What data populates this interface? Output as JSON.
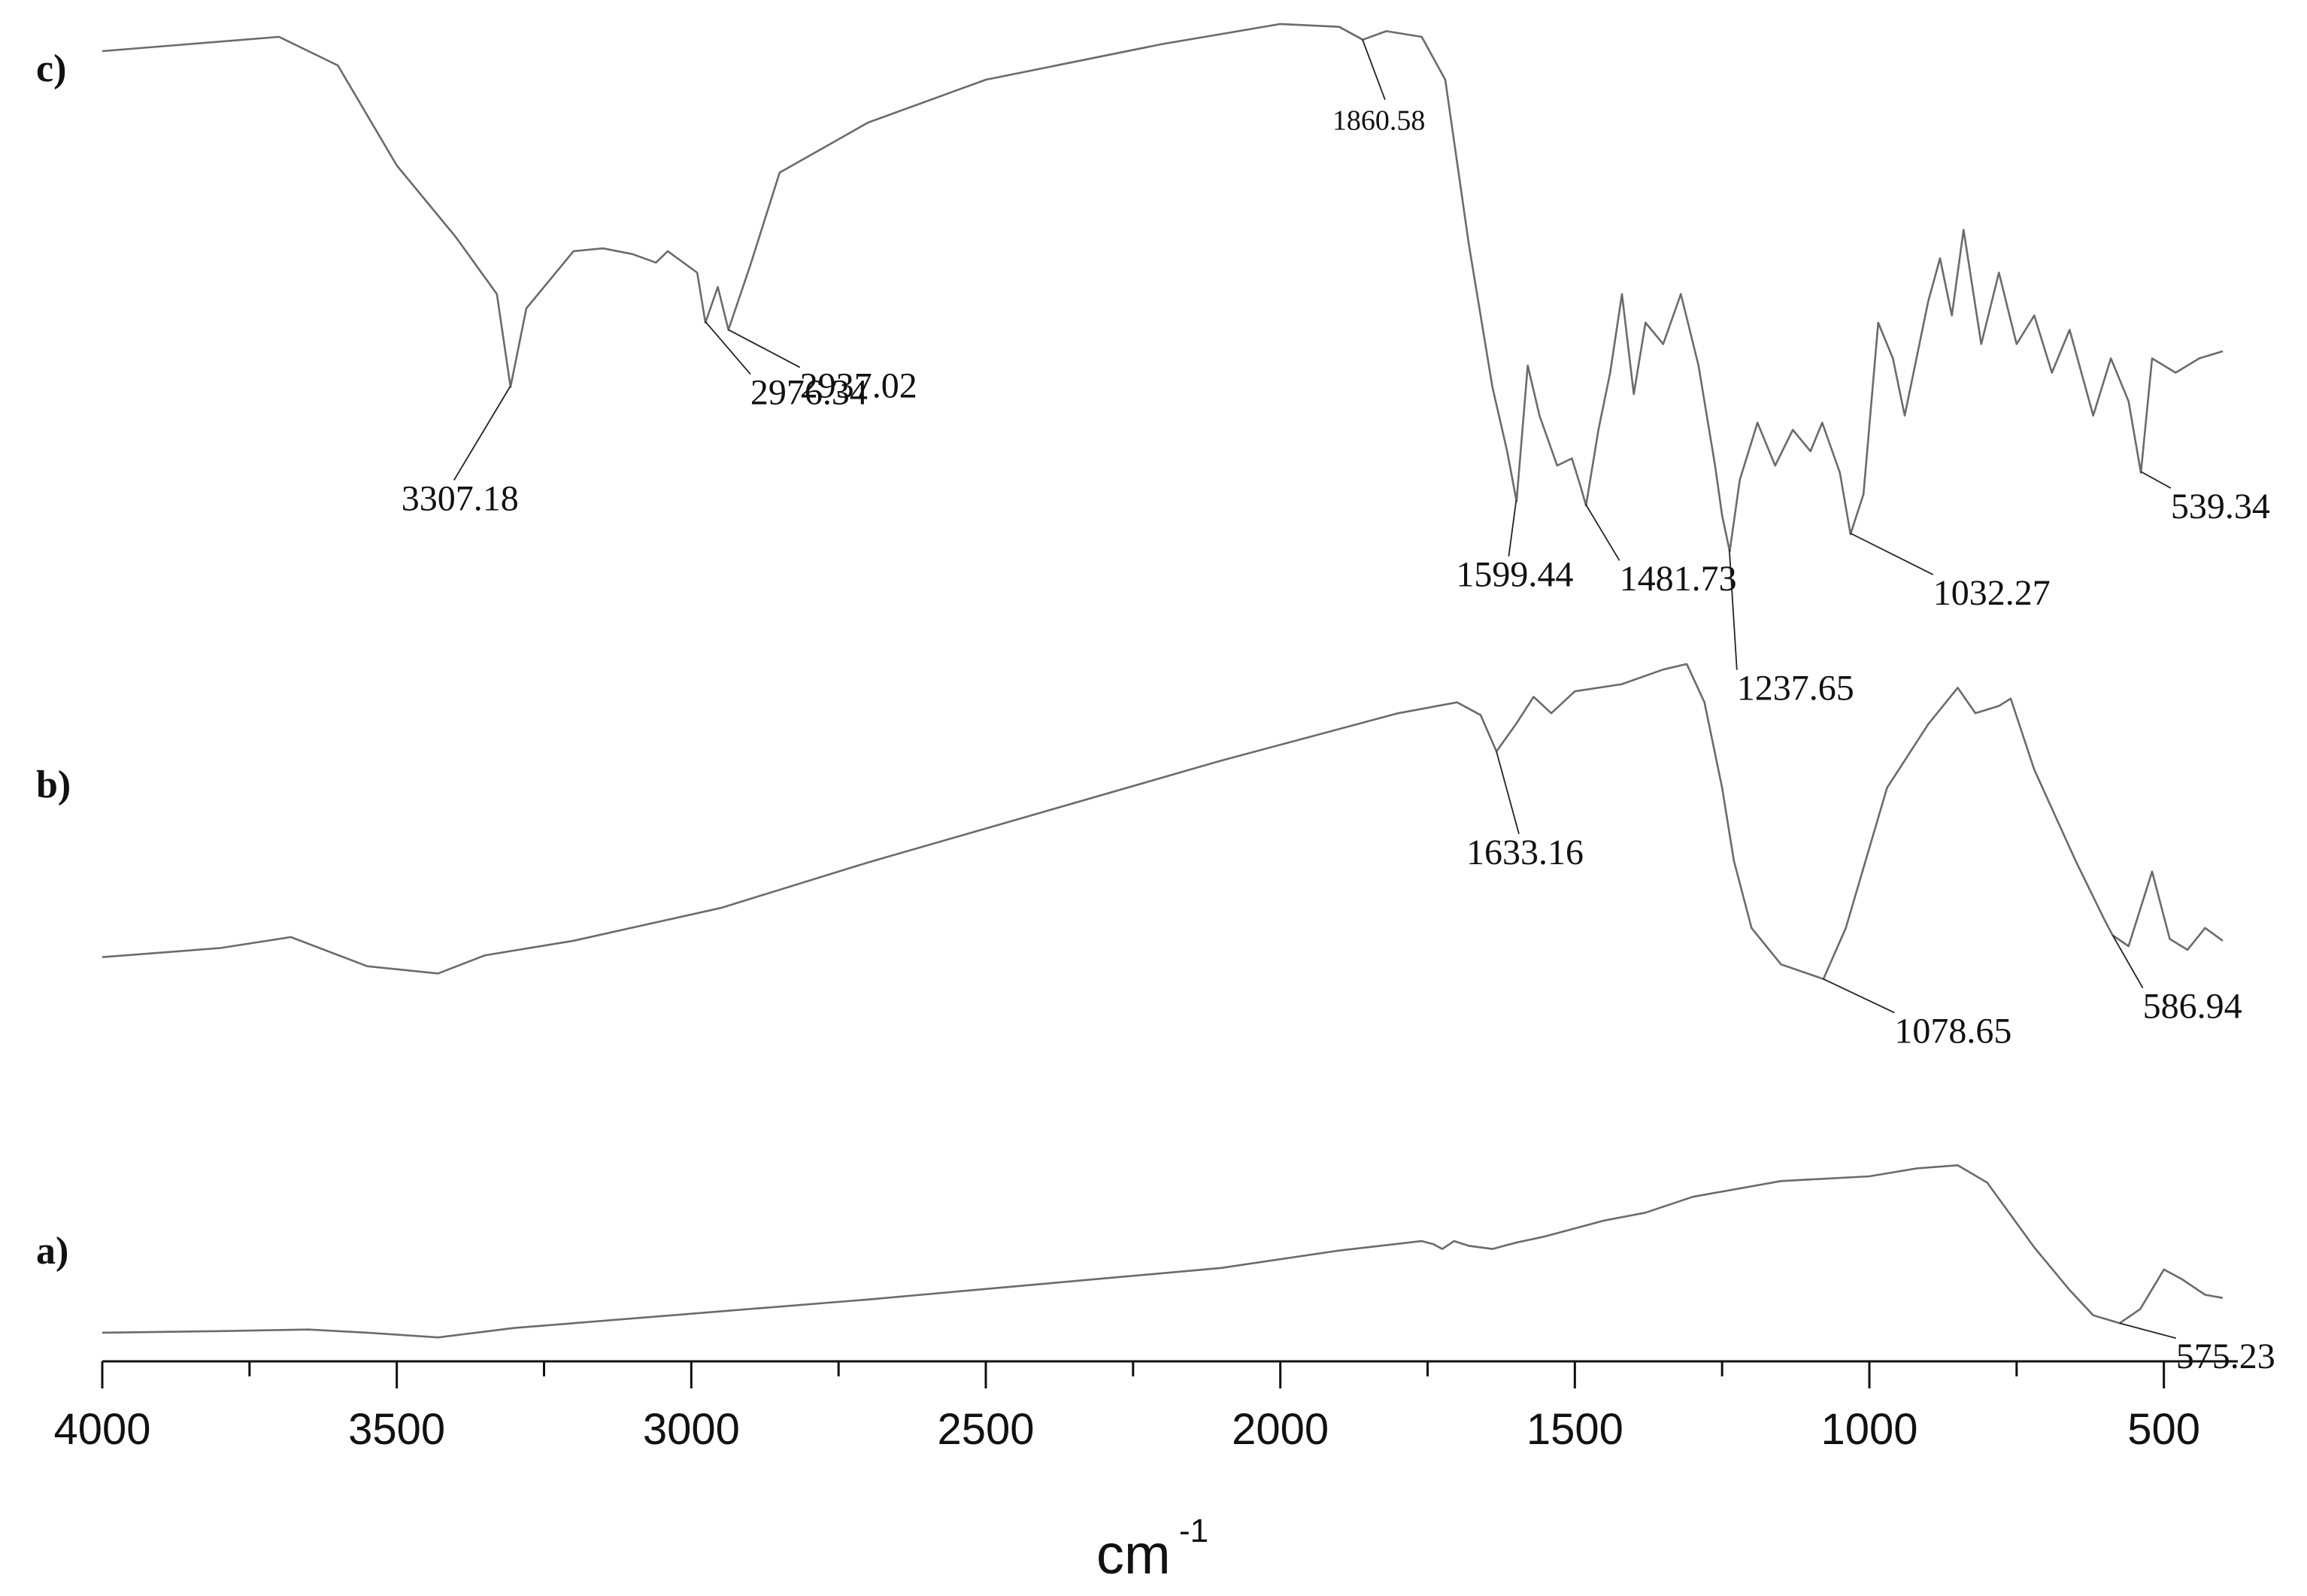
{
  "chart_data": {
    "type": "line",
    "xlabel": "cm",
    "xlabel_superscript": "-1",
    "xlim": [
      4000,
      400
    ],
    "x_ticks": [
      4000,
      3500,
      3000,
      2500,
      2000,
      1500,
      1000,
      500
    ],
    "x_tick_labels": [
      "4000",
      "3500",
      "3000",
      "2500",
      "2000",
      "1500",
      "1000",
      "500"
    ],
    "x_minor_ticks": [
      3750,
      3250,
      2750,
      2250,
      1750,
      1250,
      750
    ],
    "y_axis_shown": false,
    "grid": false,
    "series": [
      {
        "name": "a)",
        "x": [
          4000,
          3800,
          3650,
          3550,
          3430,
          3300,
          3000,
          2700,
          2400,
          2100,
          1900,
          1760,
          1740,
          1725,
          1705,
          1680,
          1640,
          1600,
          1550,
          1450,
          1380,
          1300,
          1150,
          1000,
          920,
          850,
          800,
          720,
          660,
          620,
          575,
          540,
          500,
          470,
          430,
          400
        ],
        "y": [
          0.11,
          0.12,
          0.13,
          0.11,
          0.08,
          0.14,
          0.23,
          0.32,
          0.42,
          0.52,
          0.63,
          0.69,
          0.67,
          0.64,
          0.69,
          0.66,
          0.64,
          0.68,
          0.72,
          0.82,
          0.87,
          0.97,
          1.07,
          1.1,
          1.15,
          1.17,
          1.06,
          0.65,
          0.38,
          0.22,
          0.17,
          0.26,
          0.51,
          0.45,
          0.35,
          0.33
        ],
        "peak_labels": [
          {
            "x": 575.23,
            "label": "575.23"
          }
        ]
      },
      {
        "name": "b)",
        "x": [
          4000,
          3800,
          3680,
          3550,
          3430,
          3350,
          3200,
          2950,
          2700,
          2400,
          2100,
          1800,
          1700,
          1660,
          1633,
          1600,
          1570,
          1540,
          1500,
          1420,
          1350,
          1310,
          1280,
          1250,
          1230,
          1200,
          1150,
          1078,
          1040,
          1000,
          970,
          900,
          850,
          820,
          780,
          760,
          720,
          650,
          600,
          587,
          560,
          520,
          490,
          460,
          430,
          400
        ],
        "y": [
          0.32,
          0.37,
          0.43,
          0.27,
          0.23,
          0.33,
          0.41,
          0.59,
          0.84,
          1.12,
          1.4,
          1.66,
          1.72,
          1.65,
          1.45,
          1.6,
          1.75,
          1.66,
          1.78,
          1.82,
          1.9,
          1.93,
          1.72,
          1.25,
          0.85,
          0.48,
          0.28,
          0.2,
          0.48,
          0.92,
          1.25,
          1.6,
          1.8,
          1.66,
          1.7,
          1.74,
          1.35,
          0.85,
          0.52,
          0.44,
          0.38,
          0.79,
          0.42,
          0.36,
          0.48,
          0.41
        ],
        "peak_labels": [
          {
            "x": 1633.16,
            "label": "1633.16"
          },
          {
            "x": 1078.65,
            "label": "1078.65"
          },
          {
            "x": 586.94,
            "label": "586.94"
          }
        ]
      },
      {
        "name": "c)",
        "x": [
          4000,
          3850,
          3700,
          3600,
          3500,
          3400,
          3330,
          3307,
          3280,
          3200,
          3150,
          3100,
          3060,
          3040,
          2990,
          2976,
          2955,
          2937,
          2900,
          2850,
          2700,
          2500,
          2200,
          2000,
          1900,
          1860,
          1820,
          1760,
          1720,
          1680,
          1640,
          1615,
          1599,
          1580,
          1560,
          1530,
          1505,
          1490,
          1481,
          1460,
          1440,
          1420,
          1400,
          1380,
          1370,
          1350,
          1320,
          1290,
          1262,
          1250,
          1237,
          1220,
          1190,
          1160,
          1130,
          1100,
          1080,
          1050,
          1032,
          1010,
          985,
          960,
          940,
          900,
          880,
          860,
          840,
          810,
          780,
          750,
          720,
          690,
          660,
          620,
          590,
          560,
          539,
          520,
          480,
          440,
          400
        ],
        "y": [
          5.0,
          5.05,
          5.1,
          4.9,
          4.2,
          3.7,
          3.3,
          2.65,
          3.2,
          3.6,
          3.62,
          3.58,
          3.52,
          3.6,
          3.45,
          3.1,
          3.35,
          3.05,
          3.5,
          4.15,
          4.5,
          4.8,
          5.05,
          5.19,
          5.17,
          5.08,
          5.14,
          5.1,
          4.8,
          3.65,
          2.65,
          2.2,
          1.85,
          2.8,
          2.45,
          2.1,
          2.15,
          1.95,
          1.82,
          2.35,
          2.75,
          3.3,
          2.6,
          3.1,
          3.05,
          2.95,
          3.3,
          2.8,
          2.1,
          1.75,
          1.5,
          2.0,
          2.4,
          2.1,
          2.35,
          2.2,
          2.4,
          2.05,
          1.62,
          1.9,
          3.1,
          2.85,
          2.45,
          3.25,
          3.55,
          3.15,
          3.75,
          2.95,
          3.45,
          2.95,
          3.15,
          2.75,
          3.05,
          2.45,
          2.85,
          2.55,
          2.05,
          2.85,
          2.75,
          2.85,
          2.9
        ],
        "peak_labels": [
          {
            "x": 3307.18,
            "label": "3307.18"
          },
          {
            "x": 2976.34,
            "label": "2976.34"
          },
          {
            "x": 2937.02,
            "label": "2937.02"
          },
          {
            "x": 1860.58,
            "label": "1860.58"
          },
          {
            "x": 1599.44,
            "label": "1599.44"
          },
          {
            "x": 1481.73,
            "label": "1481.73"
          },
          {
            "x": 1237.65,
            "label": "1237.65"
          },
          {
            "x": 1032.27,
            "label": "1032.27"
          },
          {
            "x": 539.34,
            "label": "539.34"
          }
        ]
      }
    ]
  }
}
